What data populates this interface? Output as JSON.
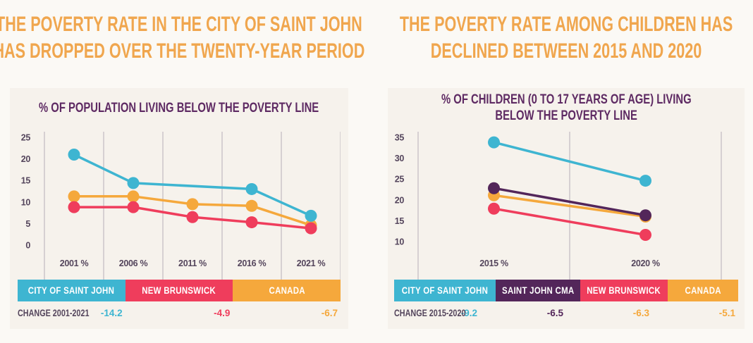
{
  "colors": {
    "blue": "#3EB5D1",
    "red": "#EF3D5C",
    "orange": "#F5A83C",
    "purple": "#53265A",
    "headline_orange": "#F0A64E",
    "title_purple": "#5E2A63",
    "axis_text": "#54455C",
    "gridline": "#ACA3B1",
    "page_bg": "#FBF9F5",
    "panel_bg": "#F6F2EC",
    "legend_text": "#FFFFFF"
  },
  "headlines": {
    "left": [
      "THE POVERTY RATE IN THE CITY OF SAINT JOHN",
      "HAS DROPPED OVER THE TWENTY-YEAR PERIOD"
    ],
    "right": [
      "THE POVERTY RATE AMONG CHILDREN HAS",
      "DECLINED BETWEEN 2015 AND 2020"
    ]
  },
  "chart_data": [
    {
      "type": "line",
      "title_lines": [
        "% OF POPULATION LIVING BELOW THE POVERTY LINE"
      ],
      "categories": [
        "2001 %",
        "2006 %",
        "2011 %",
        "2016 %",
        "2021 %"
      ],
      "yticks": [
        25,
        20,
        15,
        10,
        5,
        0
      ],
      "ylim": [
        0,
        25
      ],
      "grid": "vertical-only",
      "legend_position": "bottom-bar",
      "series": [
        {
          "name": "CANADA",
          "color": "orange",
          "values": [
            11.3,
            11.3,
            9.5,
            9.1,
            4.6
          ]
        },
        {
          "name": "NEW BRUNSWICK",
          "color": "red",
          "values": [
            8.8,
            8.8,
            6.5,
            5.3,
            3.9
          ]
        },
        {
          "name": "CITY OF SAINT JOHN",
          "color": "blue",
          "values": [
            21.0,
            14.4,
            null,
            13.0,
            6.8
          ]
        }
      ],
      "legend": [
        {
          "label": "CITY OF SAINT JOHN",
          "color": "blue"
        },
        {
          "label": "NEW BRUNSWICK",
          "color": "red"
        },
        {
          "label": "CANADA",
          "color": "orange"
        }
      ],
      "change_label": "CHANGE 2001-2021",
      "changes": [
        {
          "value": "-14.2",
          "color": "blue"
        },
        {
          "value": "-4.9",
          "color": "red"
        },
        {
          "value": "-6.7",
          "color": "orange"
        }
      ]
    },
    {
      "type": "line",
      "title_lines": [
        "% OF CHILDREN (0 TO 17 YEARS OF AGE) LIVING",
        "BELOW THE POVERTY LINE"
      ],
      "categories": [
        "2015 %",
        "2020 %"
      ],
      "yticks": [
        35,
        30,
        25,
        20,
        15,
        10
      ],
      "ylim": [
        10,
        35
      ],
      "grid": "vertical-only",
      "legend_position": "bottom-bar",
      "series": [
        {
          "name": "CANADA",
          "color": "orange",
          "values": [
            21.1,
            16.0
          ]
        },
        {
          "name": "SAINT JOHN CMA",
          "color": "purple",
          "values": [
            22.8,
            16.3
          ]
        },
        {
          "name": "NEW BRUNSWICK",
          "color": "red",
          "values": [
            17.9,
            11.6
          ]
        },
        {
          "name": "CITY OF SAINT JOHN",
          "color": "blue",
          "values": [
            33.8,
            24.6
          ]
        }
      ],
      "legend": [
        {
          "label": "CITY OF SAINT JOHN",
          "color": "blue"
        },
        {
          "label": "SAINT JOHN CMA",
          "color": "purple"
        },
        {
          "label": "NEW BRUNSWICK",
          "color": "red"
        },
        {
          "label": "CANADA",
          "color": "orange"
        }
      ],
      "change_label": "CHANGE 2015-2020",
      "changes": [
        {
          "value": "-9.2",
          "color": "blue"
        },
        {
          "value": "-6.5",
          "color": "purple"
        },
        {
          "value": "-6.3",
          "color": "orange"
        },
        {
          "value": "-5.1",
          "color": "orange"
        }
      ]
    }
  ]
}
